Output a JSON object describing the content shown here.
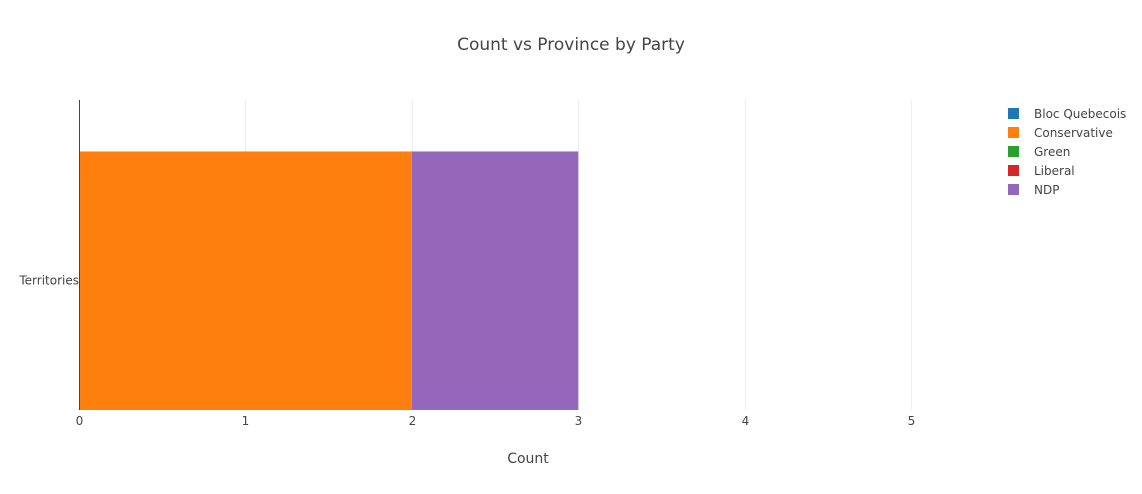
{
  "chart_data": {
    "type": "bar",
    "orientation": "horizontal",
    "barmode": "stack",
    "title": "Count vs Province by Party",
    "xlabel": "Count",
    "ylabel": "",
    "categories": [
      "Territories"
    ],
    "xlim": [
      0,
      5.6
    ],
    "xticks": [
      0,
      1,
      2,
      3,
      4,
      5
    ],
    "grid": true,
    "legend_position": "top-right",
    "series": [
      {
        "name": "Bloc Quebecois",
        "color": "#1f77b4",
        "values": [
          0
        ]
      },
      {
        "name": "Conservative",
        "color": "#ff7f0e",
        "values": [
          2
        ]
      },
      {
        "name": "Green",
        "color": "#2ca02c",
        "values": [
          0
        ]
      },
      {
        "name": "Liberal",
        "color": "#d62728",
        "values": [
          0
        ]
      },
      {
        "name": "NDP",
        "color": "#9467bd",
        "values": [
          1
        ]
      }
    ]
  }
}
